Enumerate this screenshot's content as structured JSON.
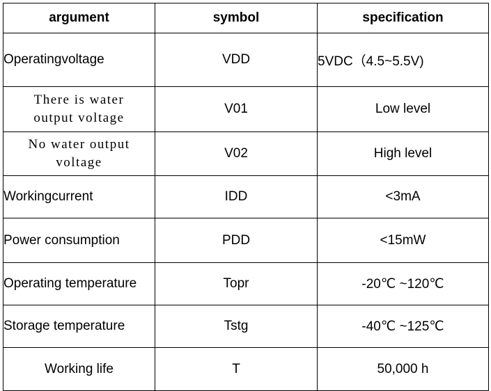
{
  "table": {
    "headers": {
      "argument": "argument",
      "symbol": "symbol",
      "specification": "specification"
    },
    "rows": [
      {
        "argument": "Operatingvoltage",
        "symbol": "VDD",
        "specification": "5VDC（4.5~5.5V)"
      },
      {
        "argument_line1": "There is water",
        "argument_line2": "output voltage",
        "symbol": "V01",
        "specification": "Low level"
      },
      {
        "argument_line1": "No water output",
        "argument_line2": "voltage",
        "symbol": "V02",
        "specification": "High level"
      },
      {
        "argument": "Workingcurrent",
        "symbol": "IDD",
        "specification": "<3mA"
      },
      {
        "argument": "Power consumption",
        "symbol": "PDD",
        "specification": "<15mW"
      },
      {
        "argument": "Operating temperature",
        "symbol": "Topr",
        "specification": "-20℃ ~120℃"
      },
      {
        "argument": "Storage temperature",
        "symbol": "Tstg",
        "specification": "-40℃ ~125℃"
      },
      {
        "argument": "Working life",
        "symbol": "T",
        "specification": "50,000  h"
      }
    ]
  }
}
